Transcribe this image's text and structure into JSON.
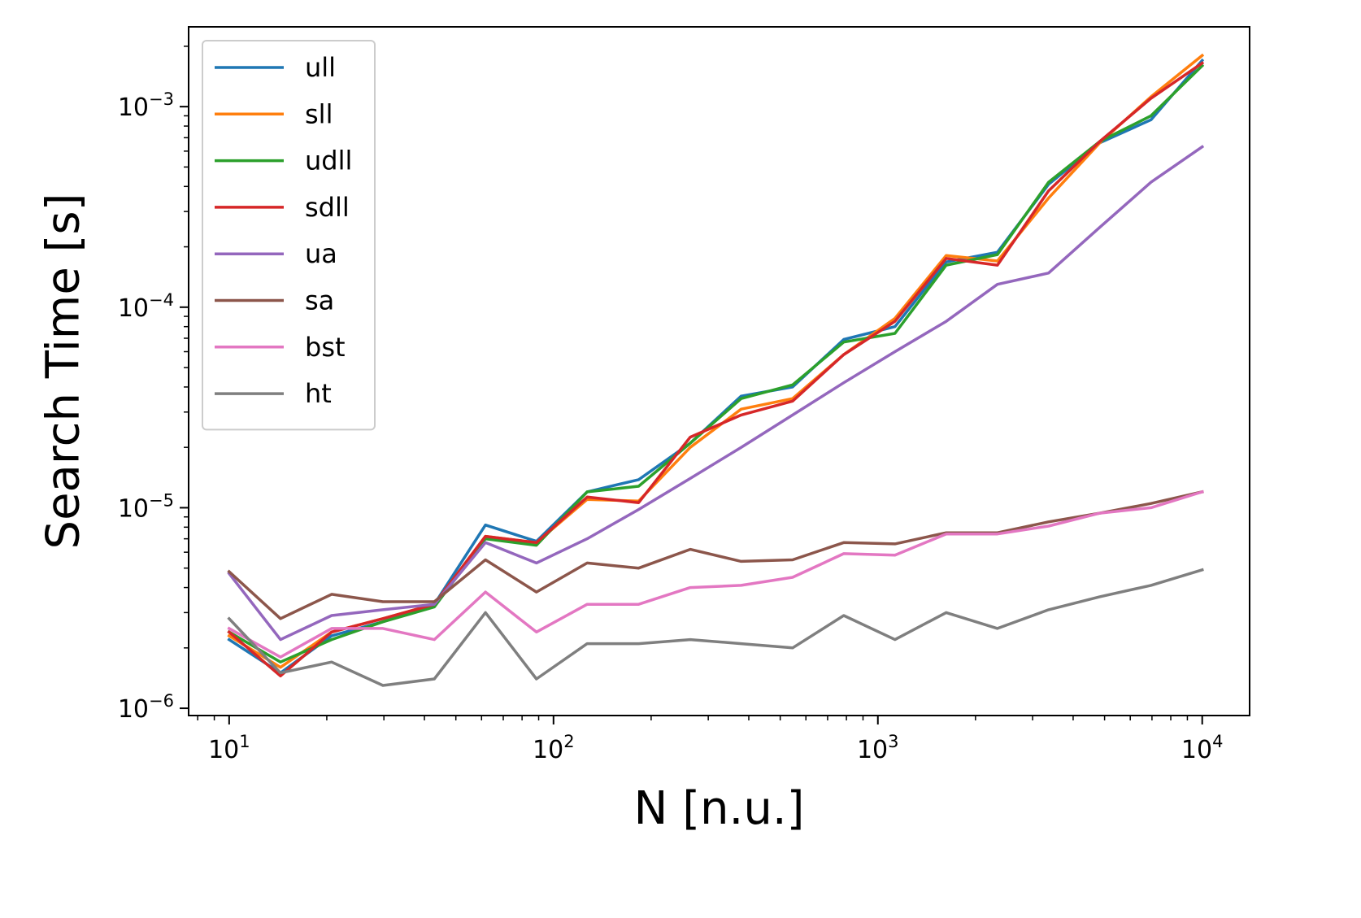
{
  "chart_data": {
    "type": "line",
    "xlabel": "N [n.u.]",
    "ylabel": "Search Time [s]",
    "xscale": "log",
    "yscale": "log",
    "xlim": [
      7.5,
      14000
    ],
    "ylim": [
      9.2e-07,
      0.0025
    ],
    "xticks": [
      {
        "value": 10,
        "base": "10",
        "exp": "1"
      },
      {
        "value": 100,
        "base": "10",
        "exp": "2"
      },
      {
        "value": 1000,
        "base": "10",
        "exp": "3"
      },
      {
        "value": 10000,
        "base": "10",
        "exp": "4"
      }
    ],
    "yticks": [
      {
        "value": 1e-06,
        "base": "10",
        "exp": "−6"
      },
      {
        "value": 1e-05,
        "base": "10",
        "exp": "−5"
      },
      {
        "value": 0.0001,
        "base": "10",
        "exp": "−4"
      },
      {
        "value": 0.001,
        "base": "10",
        "exp": "−3"
      }
    ],
    "grid": false,
    "legend_position": "top-left",
    "x": [
      10,
      14.4,
      20.7,
      29.8,
      42.9,
      61.7,
      88.6,
      127,
      183,
      264,
      379,
      546,
      785,
      1129,
      1624,
      2336,
      3360,
      4833,
      6952,
      10000
    ],
    "series": [
      {
        "name": "ull",
        "color": "#1f77b4",
        "values": [
          2.2e-06,
          1.5e-06,
          2.3e-06,
          2.7e-06,
          3.3e-06,
          8.2e-06,
          6.8e-06,
          1.2e-05,
          1.38e-05,
          2.1e-05,
          3.6e-05,
          4e-05,
          6.9e-05,
          8e-05,
          0.000168,
          0.000188,
          0.00041,
          0.00066,
          0.00086,
          0.0017
        ]
      },
      {
        "name": "sll",
        "color": "#ff7f0e",
        "values": [
          2.3e-06,
          1.6e-06,
          2.4e-06,
          2.8e-06,
          3.3e-06,
          7.2e-06,
          6.7e-06,
          1.1e-05,
          1.08e-05,
          2e-05,
          3.1e-05,
          3.5e-05,
          5.8e-05,
          8.8e-05,
          0.000181,
          0.00017,
          0.00035,
          0.00066,
          0.00112,
          0.0018
        ]
      },
      {
        "name": "udll",
        "color": "#2ca02c",
        "values": [
          2.4e-06,
          1.7e-06,
          2.2e-06,
          2.7e-06,
          3.2e-06,
          7e-06,
          6.5e-06,
          1.2e-05,
          1.28e-05,
          2.1e-05,
          3.5e-05,
          4.1e-05,
          6.7e-05,
          7.4e-05,
          0.000162,
          0.000183,
          0.00042,
          0.00067,
          0.0009,
          0.0016
        ]
      },
      {
        "name": "sdll",
        "color": "#d62728",
        "values": [
          2.4e-06,
          1.45e-06,
          2.4e-06,
          2.8e-06,
          3.3e-06,
          7.2e-06,
          6.7e-06,
          1.13e-05,
          1.06e-05,
          2.25e-05,
          2.9e-05,
          3.4e-05,
          5.8e-05,
          8.5e-05,
          0.000175,
          0.000162,
          0.00038,
          0.00067,
          0.0011,
          0.00165
        ]
      },
      {
        "name": "ua",
        "color": "#9467bd",
        "values": [
          4.7e-06,
          2.2e-06,
          2.9e-06,
          3.1e-06,
          3.3e-06,
          6.7e-06,
          5.3e-06,
          7e-06,
          9.8e-06,
          1.4e-05,
          2e-05,
          2.9e-05,
          4.2e-05,
          6e-05,
          8.5e-05,
          0.00013,
          0.000148,
          0.00025,
          0.00042,
          0.00063
        ]
      },
      {
        "name": "sa",
        "color": "#8c564b",
        "values": [
          4.8e-06,
          2.8e-06,
          3.7e-06,
          3.4e-06,
          3.4e-06,
          5.5e-06,
          3.8e-06,
          5.3e-06,
          5e-06,
          6.2e-06,
          5.4e-06,
          5.5e-06,
          6.7e-06,
          6.6e-06,
          7.5e-06,
          7.5e-06,
          8.5e-06,
          9.4e-06,
          1.05e-05,
          1.2e-05
        ]
      },
      {
        "name": "bst",
        "color": "#e377c2",
        "values": [
          2.5e-06,
          1.8e-06,
          2.5e-06,
          2.5e-06,
          2.2e-06,
          3.8e-06,
          2.4e-06,
          3.3e-06,
          3.3e-06,
          4e-06,
          4.1e-06,
          4.5e-06,
          5.9e-06,
          5.8e-06,
          7.4e-06,
          7.4e-06,
          8.1e-06,
          9.4e-06,
          1e-05,
          1.2e-05
        ]
      },
      {
        "name": "ht",
        "color": "#7f7f7f",
        "values": [
          2.8e-06,
          1.5e-06,
          1.7e-06,
          1.3e-06,
          1.4e-06,
          3e-06,
          1.4e-06,
          2.1e-06,
          2.1e-06,
          2.2e-06,
          2.1e-06,
          2e-06,
          2.9e-06,
          2.2e-06,
          3e-06,
          2.5e-06,
          3.1e-06,
          3.6e-06,
          4.1e-06,
          4.9e-06
        ]
      }
    ]
  }
}
